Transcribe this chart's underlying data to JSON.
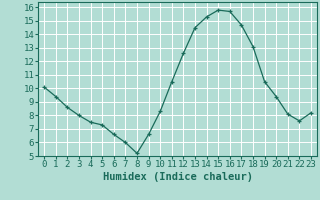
{
  "x": [
    0,
    1,
    2,
    3,
    4,
    5,
    6,
    7,
    8,
    9,
    10,
    11,
    12,
    13,
    14,
    15,
    16,
    17,
    18,
    19,
    20,
    21,
    22,
    23
  ],
  "y": [
    10.1,
    9.4,
    8.6,
    8.0,
    7.5,
    7.3,
    6.6,
    6.0,
    5.2,
    6.6,
    8.3,
    10.5,
    12.6,
    14.5,
    15.3,
    15.8,
    15.7,
    14.7,
    13.1,
    10.5,
    9.4,
    8.1,
    7.6,
    8.2
  ],
  "xlim": [
    -0.5,
    23.5
  ],
  "ylim": [
    5,
    16.4
  ],
  "xticks": [
    0,
    1,
    2,
    3,
    4,
    5,
    6,
    7,
    8,
    9,
    10,
    11,
    12,
    13,
    14,
    15,
    16,
    17,
    18,
    19,
    20,
    21,
    22,
    23
  ],
  "yticks": [
    5,
    6,
    7,
    8,
    9,
    10,
    11,
    12,
    13,
    14,
    15,
    16
  ],
  "xlabel": "Humidex (Indice chaleur)",
  "line_color": "#1a6b5a",
  "marker": "+",
  "bg_color": "#b2ddd4",
  "grid_color": "#ffffff",
  "tick_label_fontsize": 6.5,
  "xlabel_fontsize": 7.5
}
